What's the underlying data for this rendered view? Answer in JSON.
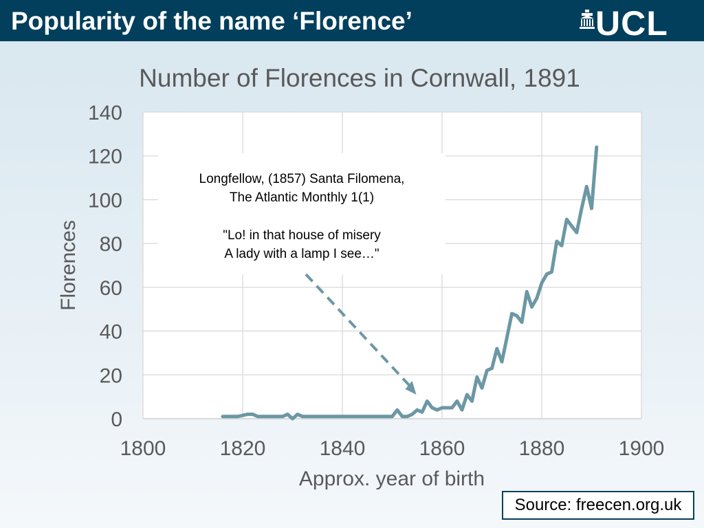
{
  "header": {
    "title": "Popularity of the name ‘Florence’",
    "logo_text": "UCL",
    "background": "#013f5c"
  },
  "source": "Source: freecen.org.uk",
  "annotation": {
    "lines": [
      "Longfellow, (1857) Santa Filomena,",
      "The Atlantic Monthly 1(1)",
      "",
      "\"Lo! in that house of misery",
      "A lady with a lamp I see…\""
    ],
    "arrow_style": "dashed",
    "points_to_year": 1850
  },
  "chart_data": {
    "type": "line",
    "title": "Number of Florences in Cornwall, 1891",
    "xlabel": "Approx. year of birth",
    "ylabel": "Florences",
    "xlim": [
      1800,
      1900
    ],
    "ylim": [
      0,
      140
    ],
    "xticks": [
      "1800",
      "1820",
      "1840",
      "1860",
      "1880",
      "1900"
    ],
    "yticks": [
      "0",
      "20",
      "40",
      "60",
      "80",
      "100",
      "120",
      "140"
    ],
    "grid": true,
    "line_color": "#6c97a5",
    "series": [
      {
        "x": [
          1816,
          1817,
          1818,
          1819,
          1820,
          1821,
          1822,
          1823,
          1824,
          1825,
          1826,
          1827,
          1828,
          1829,
          1830,
          1831,
          1832,
          1833,
          1834,
          1835,
          1836,
          1837,
          1838,
          1839,
          1840,
          1841,
          1842,
          1843,
          1844,
          1845,
          1846,
          1847,
          1848,
          1849,
          1850,
          1851,
          1852,
          1853,
          1854,
          1855,
          1856,
          1857,
          1858,
          1859,
          1860,
          1861,
          1862,
          1863,
          1864,
          1865,
          1866,
          1867,
          1868,
          1869,
          1870,
          1871,
          1872,
          1873,
          1874,
          1875,
          1876,
          1877,
          1878,
          1879,
          1880,
          1881,
          1882,
          1883,
          1884,
          1885,
          1886,
          1887,
          1888,
          1889,
          1890,
          1891
        ],
        "y": [
          1,
          1,
          1,
          1,
          1.5,
          2,
          2,
          1,
          1,
          1,
          1,
          1,
          1,
          2,
          0,
          2,
          1,
          1,
          1,
          1,
          1,
          1,
          1,
          1,
          1,
          1,
          1,
          1,
          1,
          1,
          1,
          1,
          1,
          1,
          1,
          4,
          1,
          1,
          2,
          4,
          3,
          8,
          5,
          4,
          5,
          5,
          5,
          8,
          4,
          11,
          8,
          19,
          14,
          22,
          23,
          32,
          26,
          37,
          48,
          47,
          44,
          58,
          51,
          55,
          62,
          66,
          67,
          81,
          79,
          91,
          88,
          85,
          96,
          106,
          96,
          124
        ]
      }
    ]
  }
}
